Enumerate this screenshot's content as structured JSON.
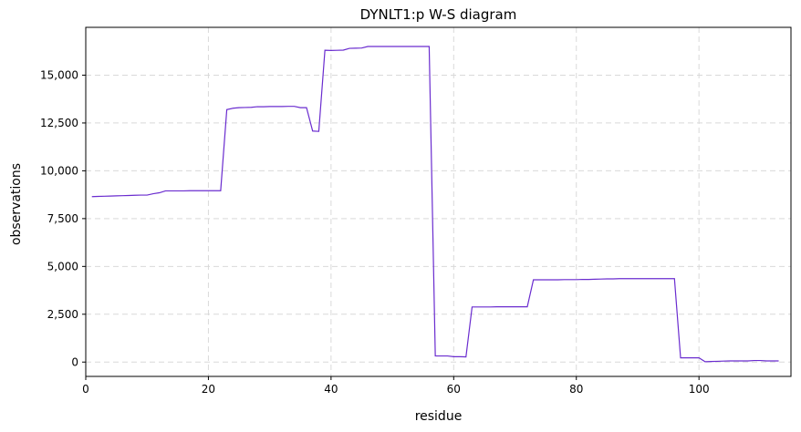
{
  "chart_data": {
    "type": "line",
    "title": "DYNLT1:p W-S diagram",
    "xlabel": "residue",
    "ylabel": "observations",
    "xlim": [
      0,
      115
    ],
    "ylim": [
      -750,
      17500
    ],
    "xticks": [
      0,
      20,
      40,
      60,
      80,
      100
    ],
    "yticks": [
      0,
      2500,
      5000,
      7500,
      10000,
      12500,
      15000
    ],
    "ytick_labels": [
      "0",
      "2,500",
      "5,000",
      "7,500",
      "10,000",
      "12,500",
      "15,000"
    ],
    "grid": true,
    "line_color": "#6a2ccf",
    "series": [
      {
        "x": [
          1,
          2,
          3,
          4,
          5,
          6,
          7,
          8,
          9,
          10,
          11,
          12,
          13,
          14,
          15,
          16,
          17,
          18,
          19,
          20,
          21,
          22,
          23,
          24,
          25,
          26,
          27,
          28,
          29,
          30,
          31,
          32,
          33,
          34,
          35,
          36,
          37,
          38,
          39,
          40,
          41,
          42,
          43,
          44,
          45,
          46,
          47,
          48,
          49,
          50,
          51,
          52,
          53,
          54,
          55,
          56,
          57,
          58,
          59,
          60,
          61,
          62,
          63,
          64,
          65,
          66,
          67,
          68,
          69,
          70,
          71,
          72,
          73,
          74,
          75,
          76,
          77,
          78,
          79,
          80,
          81,
          82,
          83,
          84,
          85,
          86,
          87,
          88,
          89,
          90,
          91,
          92,
          93,
          94,
          95,
          96,
          97,
          98,
          99,
          100,
          101,
          102,
          103,
          104,
          105,
          106,
          107,
          108,
          109,
          110,
          111,
          112,
          113
        ],
        "y": [
          8650,
          8660,
          8670,
          8680,
          8690,
          8700,
          8710,
          8720,
          8730,
          8730,
          8800,
          8850,
          8950,
          8950,
          8950,
          8950,
          8960,
          8960,
          8960,
          8960,
          8960,
          8960,
          13200,
          13270,
          13300,
          13310,
          13320,
          13350,
          13350,
          13360,
          13360,
          13360,
          13370,
          13370,
          13300,
          13300,
          12080,
          12060,
          16300,
          16290,
          16300,
          16310,
          16400,
          16410,
          16420,
          16500,
          16500,
          16500,
          16500,
          16500,
          16500,
          16500,
          16500,
          16500,
          16500,
          16500,
          320,
          320,
          320,
          280,
          280,
          270,
          2880,
          2880,
          2880,
          2880,
          2890,
          2890,
          2890,
          2890,
          2890,
          2890,
          4300,
          4300,
          4300,
          4300,
          4300,
          4310,
          4310,
          4310,
          4320,
          4320,
          4330,
          4340,
          4350,
          4350,
          4360,
          4360,
          4360,
          4360,
          4360,
          4360,
          4360,
          4360,
          4360,
          4360,
          220,
          220,
          220,
          220,
          20,
          30,
          40,
          50,
          60,
          60,
          60,
          60,
          80,
          80,
          60,
          60,
          60
        ]
      }
    ]
  }
}
